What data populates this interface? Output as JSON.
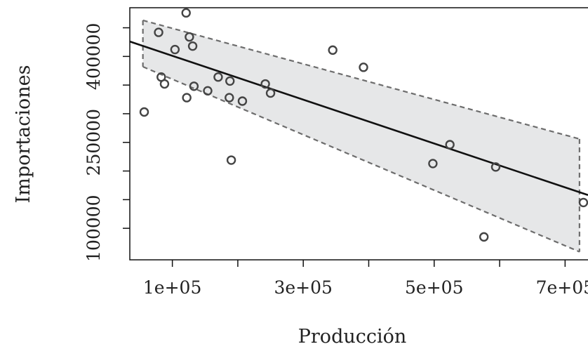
{
  "chart_data": {
    "type": "scatter",
    "title": "",
    "xlabel": "Producción",
    "ylabel": "Importaciones",
    "xlim": [
      35000,
      735000
    ],
    "ylim": [
      45000,
      485000
    ],
    "x_ticks": [
      100000,
      200000,
      300000,
      400000,
      500000,
      600000,
      700000
    ],
    "x_tick_labels": [
      "1e+05",
      "",
      "3e+05",
      "",
      "5e+05",
      "",
      "7e+05"
    ],
    "y_ticks": [
      100000,
      150000,
      200000,
      250000,
      300000,
      350000,
      400000,
      450000
    ],
    "y_tick_labels": [
      "100000",
      "",
      "",
      "250000",
      "",
      "",
      "400000",
      ""
    ],
    "grid": false,
    "legend": "none",
    "points": [
      {
        "x": 57000,
        "y": 303000
      },
      {
        "x": 79000,
        "y": 442000
      },
      {
        "x": 83000,
        "y": 364000
      },
      {
        "x": 88000,
        "y": 352000
      },
      {
        "x": 104000,
        "y": 412000
      },
      {
        "x": 121000,
        "y": 476000
      },
      {
        "x": 122000,
        "y": 328000
      },
      {
        "x": 126000,
        "y": 434000
      },
      {
        "x": 131000,
        "y": 418000
      },
      {
        "x": 133000,
        "y": 348000
      },
      {
        "x": 154000,
        "y": 340000
      },
      {
        "x": 170000,
        "y": 364000
      },
      {
        "x": 187000,
        "y": 328000
      },
      {
        "x": 188000,
        "y": 357000
      },
      {
        "x": 190000,
        "y": 219000
      },
      {
        "x": 207000,
        "y": 322000
      },
      {
        "x": 242000,
        "y": 352000
      },
      {
        "x": 250000,
        "y": 336000
      },
      {
        "x": 345000,
        "y": 411000
      },
      {
        "x": 392000,
        "y": 381000
      },
      {
        "x": 498000,
        "y": 213000
      },
      {
        "x": 524000,
        "y": 246000
      },
      {
        "x": 576000,
        "y": 85000
      },
      {
        "x": 594000,
        "y": 207000
      },
      {
        "x": 728000,
        "y": 145000
      }
    ],
    "fit_line": {
      "x": [
        35000,
        735000
      ],
      "y": [
        426000,
        158000
      ]
    },
    "band": {
      "x": [
        55000,
        722000
      ],
      "upper": [
        463000,
        256000
      ],
      "lower": [
        382000,
        59000
      ]
    },
    "colors": {
      "points": "#444444",
      "fit_line": "#111111",
      "band_fill": "#e6e7e8",
      "band_edge": "#6d6d6d"
    }
  }
}
